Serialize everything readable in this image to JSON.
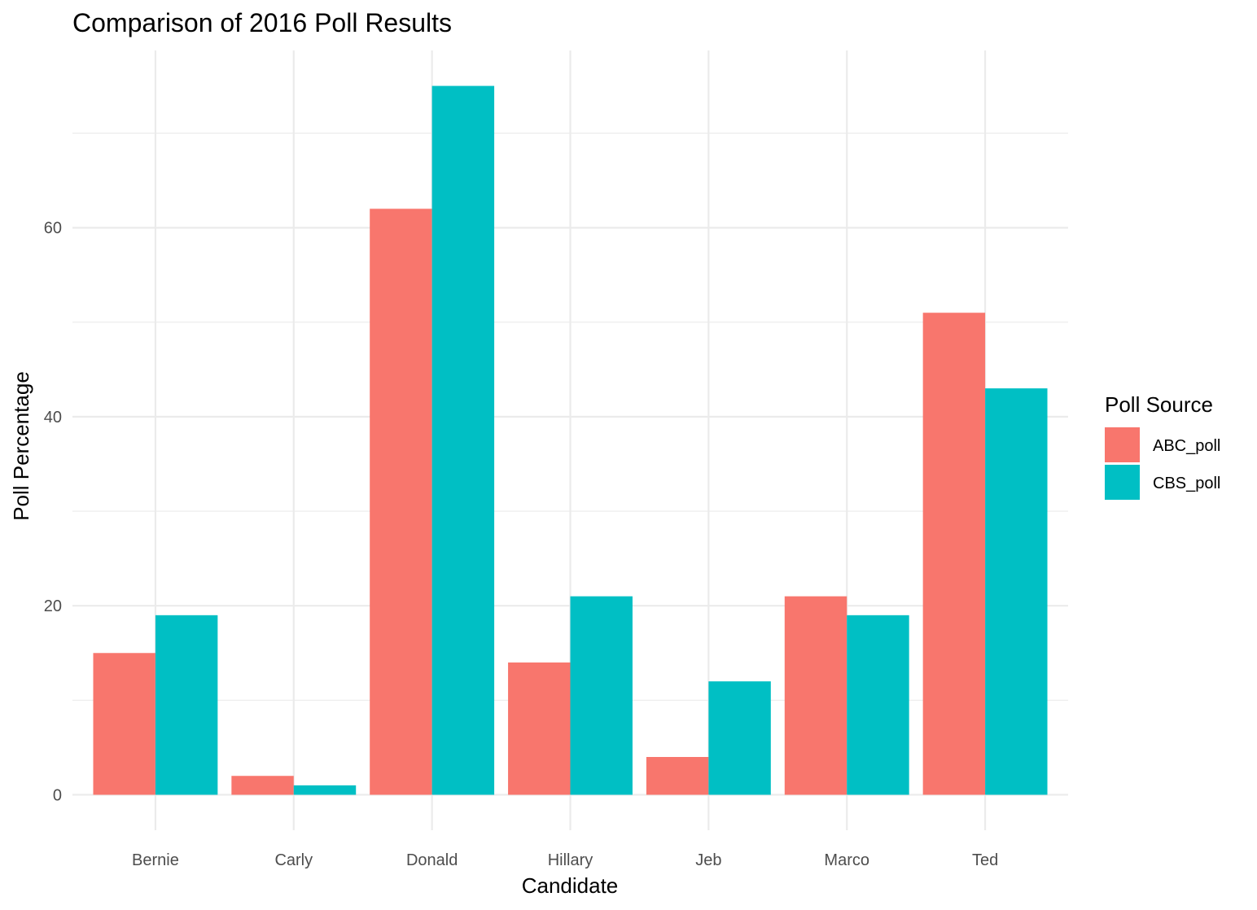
{
  "chart_data": {
    "type": "bar",
    "title": "Comparison of 2016 Poll Results",
    "xlabel": "Candidate",
    "ylabel": "Poll Percentage",
    "categories": [
      "Bernie",
      "Carly",
      "Donald",
      "Hillary",
      "Jeb",
      "Marco",
      "Ted"
    ],
    "series": [
      {
        "name": "ABC_poll",
        "color": "#F8766D",
        "values": [
          15,
          2,
          62,
          14,
          4,
          21,
          51
        ]
      },
      {
        "name": "CBS_poll",
        "color": "#00BFC4",
        "values": [
          19,
          1,
          75,
          21,
          12,
          19,
          43
        ]
      }
    ],
    "ylim": [
      -3.75,
      78.75
    ],
    "yticks": [
      0,
      20,
      40,
      60
    ],
    "ytick_labels": [
      "0",
      "20",
      "40",
      "60"
    ],
    "grid": true,
    "legend": {
      "title": "Poll Source",
      "position": "right"
    }
  }
}
